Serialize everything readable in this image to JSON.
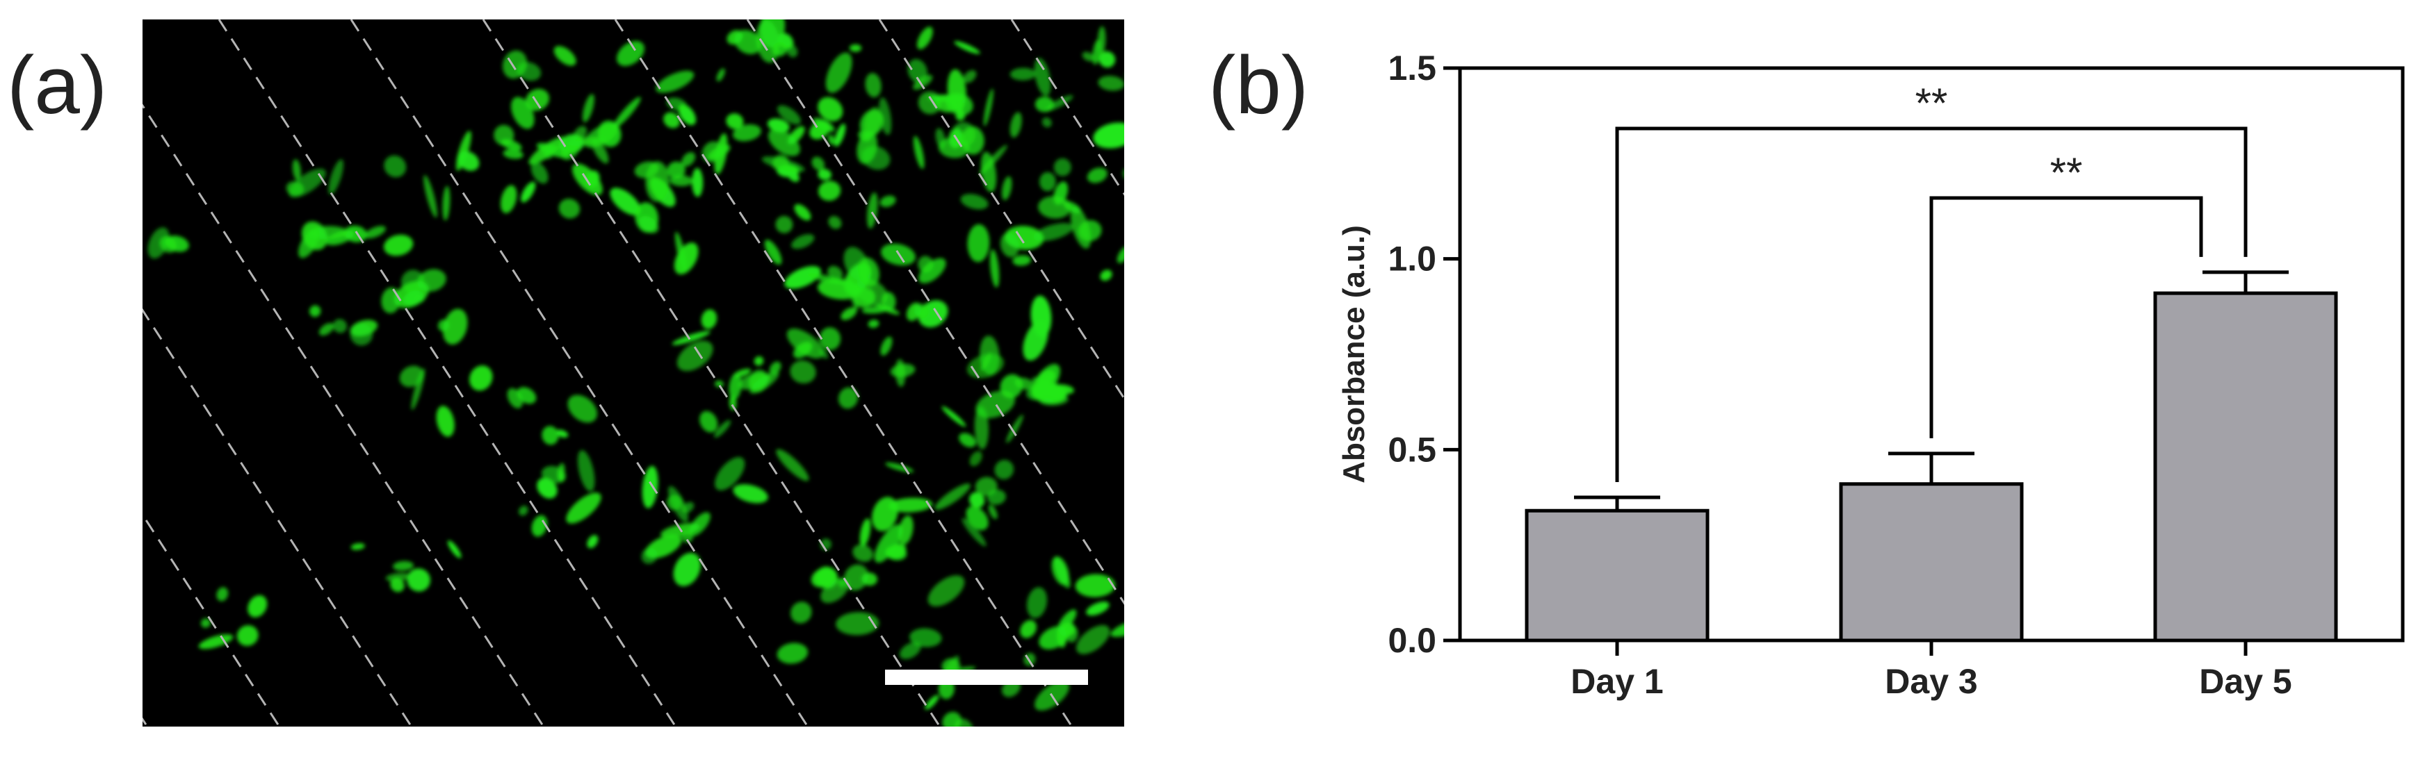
{
  "panels": {
    "a": "(a)",
    "b": "(b)"
  },
  "colors": {
    "fluorescence": "#22e61a",
    "bar_fill": "#a3a2a8",
    "stripe": "#b4b4b4",
    "scale_bar": "#ffffff"
  },
  "chart_data": {
    "type": "bar",
    "categories": [
      "Day 1",
      "Day 3",
      "Day 5"
    ],
    "values": [
      0.34,
      0.41,
      0.91
    ],
    "errors": [
      0.035,
      0.08,
      0.055
    ],
    "ylabel": "Absorbance (a.u.)",
    "ylim": [
      0.0,
      1.5
    ],
    "yticks": [
      0.0,
      0.5,
      1.0,
      1.5
    ],
    "ytick_labels": [
      "0.0",
      "0.5",
      "1.0",
      "1.5"
    ],
    "grid": false,
    "significance": [
      {
        "from": "Day 1",
        "to": "Day 5",
        "label": "**"
      },
      {
        "from": "Day 3",
        "to": "Day 5",
        "label": "**"
      }
    ]
  }
}
